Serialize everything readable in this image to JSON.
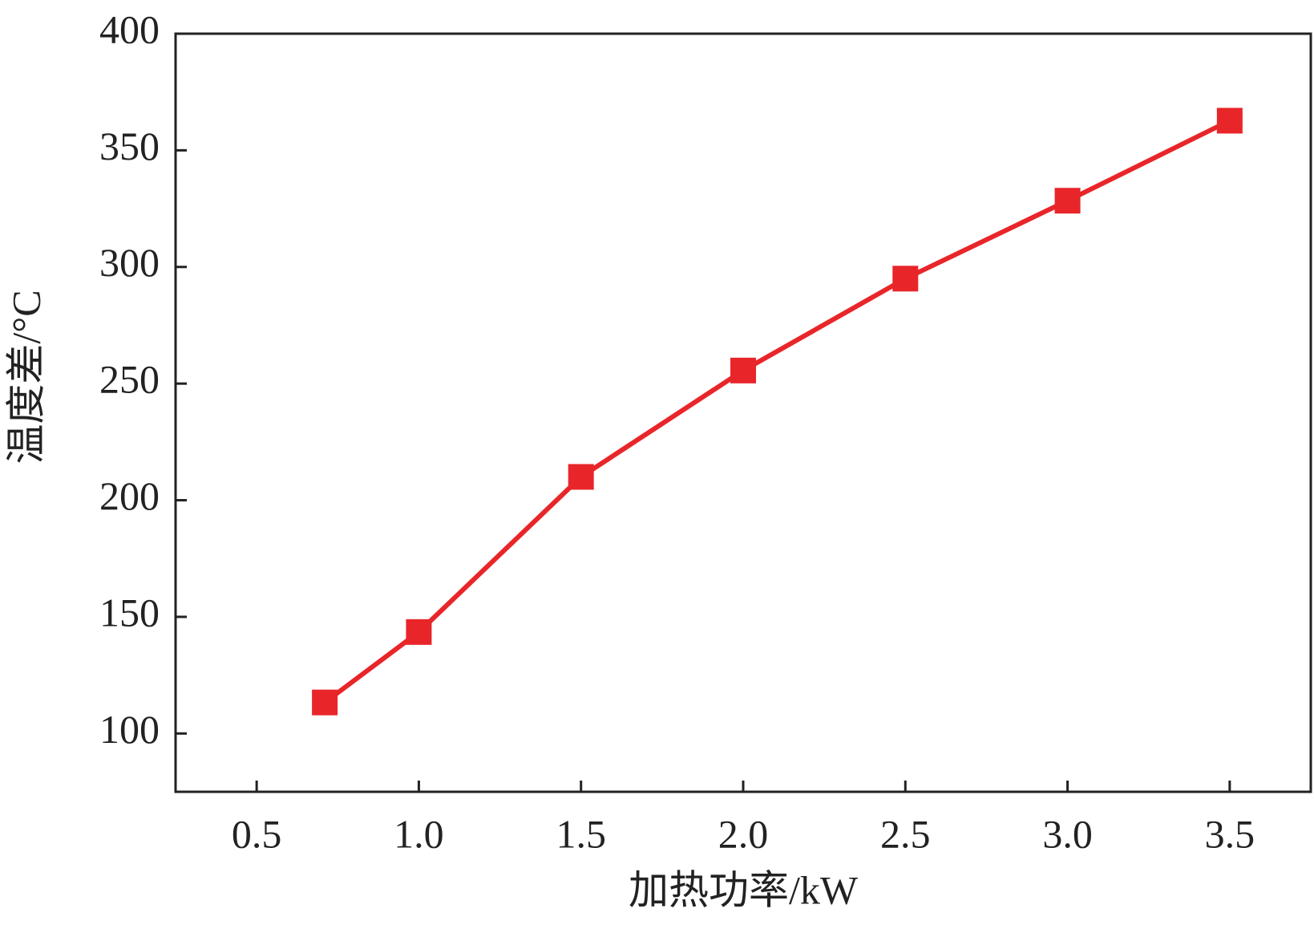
{
  "chart_data": {
    "type": "line",
    "x_label": "加热功率/kW",
    "y_label": "温度差/°C",
    "x": [
      0.71,
      1.0,
      1.5,
      2.0,
      2.5,
      3.0,
      3.5
    ],
    "series": [
      {
        "color": "#e8262a",
        "values": [
          113.3,
          143.5,
          210,
          255.6,
          295,
          328.4,
          362.7
        ]
      }
    ],
    "xlim": [
      0.25,
      3.75
    ],
    "xticks": [
      {
        "value": 0.5,
        "label": "0.5"
      },
      {
        "value": 1.0,
        "label": "1.0"
      },
      {
        "value": 1.5,
        "label": "1.5"
      },
      {
        "value": 2.0,
        "label": "2.0"
      },
      {
        "value": 2.5,
        "label": "2.5"
      },
      {
        "value": 3.0,
        "label": "3.0"
      },
      {
        "value": 3.5,
        "label": "3.5"
      }
    ],
    "ylim": [
      75,
      400
    ],
    "yticks": [
      100,
      150,
      200,
      250,
      300,
      350,
      400
    ]
  }
}
